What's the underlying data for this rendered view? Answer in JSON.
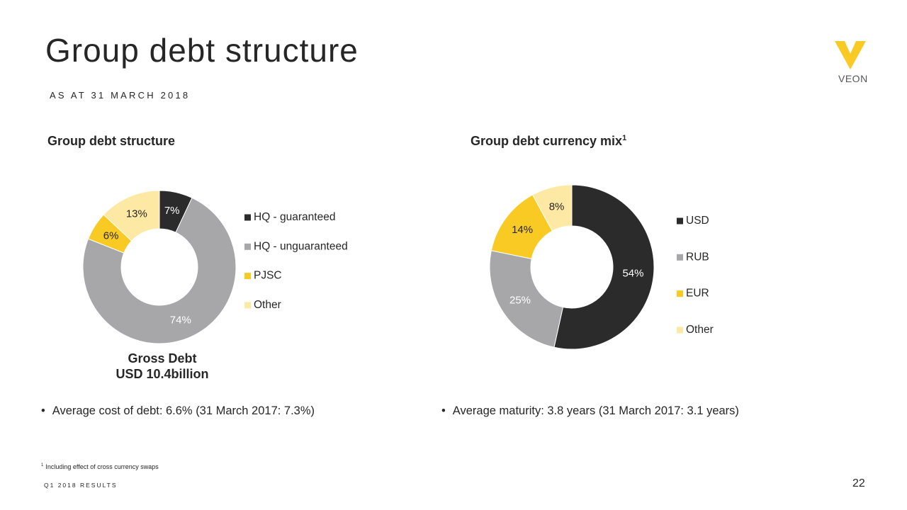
{
  "title": "Group debt structure",
  "subtitle": "AS AT 31 MARCH 2018",
  "logo": "VEON",
  "chart_data": [
    {
      "type": "donut",
      "title": "Group debt structure",
      "categories": [
        "HQ - guaranteed",
        "HQ - unguaranteed",
        "PJSC",
        "Other"
      ],
      "values": [
        7,
        74,
        6,
        13
      ],
      "value_labels": [
        "7%",
        "74%",
        "6%",
        "13%"
      ],
      "colors": [
        "#2b2b2b",
        "#a7a7a9",
        "#f9c924",
        "#fde9a4"
      ],
      "annotations": [
        "Gross Debt",
        "USD 10.4billion"
      ]
    },
    {
      "type": "donut",
      "title": "Group debt currency mix",
      "title_note": "1",
      "categories": [
        "USD",
        "RUB",
        "EUR",
        "Other"
      ],
      "values": [
        54,
        25,
        14,
        8
      ],
      "value_labels": [
        "54%",
        "25%",
        "14%",
        "8%"
      ],
      "colors": [
        "#2b2b2b",
        "#a7a7a9",
        "#f9c924",
        "#fde9a4"
      ]
    }
  ],
  "bullets": [
    "Average cost of debt: 6.6% (31 March 2017: 7.3%)",
    "Average maturity: 3.8 years (31 March 2017: 3.1 years)"
  ],
  "footnote": {
    "mark": "1",
    "text": "Including effect of cross currency swaps"
  },
  "footer": "Q1 2018 RESULTS",
  "page_number": "22"
}
